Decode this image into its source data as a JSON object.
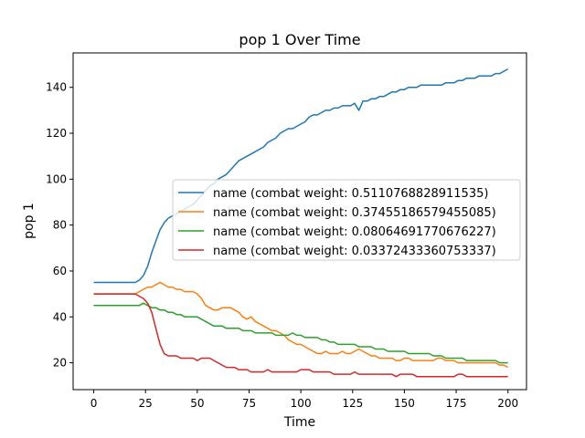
{
  "chart_data": {
    "type": "line",
    "title": "pop 1 Over Time",
    "xlabel": "Time",
    "ylabel": "pop 1",
    "xlim": [
      -9.95,
      208.95
    ],
    "ylim": [
      8.3,
      155.0
    ],
    "xticks": [
      0,
      25,
      50,
      75,
      100,
      125,
      150,
      175,
      200
    ],
    "xtick_labels": [
      "0",
      "25",
      "50",
      "75",
      "100",
      "125",
      "150",
      "175",
      "200"
    ],
    "yticks": [
      20,
      40,
      60,
      80,
      100,
      120,
      140
    ],
    "ytick_labels": [
      "20",
      "40",
      "60",
      "80",
      "100",
      "120",
      "140"
    ],
    "grid": false,
    "legend_position": "center-right",
    "series": [
      {
        "name": "name (combat weight: 0.5110768828911535)",
        "color": "#1f77b4",
        "x": [
          0,
          5,
          10,
          15,
          20,
          22,
          24,
          26,
          28,
          30,
          32,
          34,
          36,
          38,
          40,
          42,
          44,
          46,
          48,
          50,
          52,
          54,
          56,
          58,
          60,
          62,
          64,
          66,
          68,
          70,
          72,
          74,
          76,
          78,
          80,
          82,
          84,
          86,
          88,
          90,
          92,
          94,
          96,
          98,
          100,
          102,
          104,
          106,
          108,
          110,
          112,
          114,
          116,
          118,
          120,
          122,
          124,
          126,
          128,
          130,
          132,
          134,
          136,
          138,
          140,
          142,
          144,
          146,
          148,
          150,
          152,
          154,
          156,
          158,
          160,
          162,
          164,
          166,
          168,
          170,
          172,
          174,
          176,
          178,
          180,
          182,
          184,
          186,
          188,
          190,
          192,
          194,
          196,
          198,
          200
        ],
        "y": [
          55,
          55,
          55,
          55,
          55,
          56,
          58,
          62,
          68,
          73,
          78,
          81,
          83,
          84,
          85,
          86,
          87,
          88,
          89,
          91,
          93,
          95,
          97,
          98,
          100,
          101,
          102,
          104,
          106,
          108,
          109,
          110,
          111,
          112,
          113,
          114,
          116,
          117,
          118,
          120,
          121,
          122,
          122,
          123,
          124,
          125,
          127,
          128,
          128,
          129,
          130,
          130,
          131,
          131,
          132,
          132,
          132,
          133,
          130,
          134,
          134,
          135,
          135,
          136,
          136,
          137,
          138,
          138,
          139,
          139,
          140,
          140,
          140,
          141,
          141,
          141,
          141,
          141,
          141,
          142,
          142,
          142,
          143,
          143,
          144,
          144,
          144,
          145,
          145,
          145,
          145,
          146,
          146,
          147,
          148
        ]
      },
      {
        "name": "name (combat weight: 0.37455186579455085)",
        "color": "#ff7f0e",
        "x": [
          0,
          5,
          10,
          15,
          20,
          22,
          24,
          26,
          28,
          30,
          32,
          34,
          36,
          38,
          40,
          42,
          44,
          46,
          48,
          50,
          52,
          54,
          56,
          58,
          60,
          62,
          64,
          66,
          68,
          70,
          72,
          74,
          76,
          78,
          80,
          82,
          84,
          86,
          88,
          90,
          92,
          94,
          96,
          98,
          100,
          102,
          104,
          106,
          108,
          110,
          112,
          114,
          116,
          118,
          120,
          122,
          124,
          126,
          128,
          130,
          132,
          134,
          136,
          138,
          140,
          142,
          144,
          146,
          148,
          150,
          152,
          154,
          156,
          158,
          160,
          162,
          164,
          166,
          168,
          170,
          172,
          174,
          176,
          178,
          180,
          182,
          184,
          186,
          188,
          190,
          192,
          194,
          196,
          198,
          200
        ],
        "y": [
          50,
          50,
          50,
          50,
          50,
          51,
          52,
          53,
          53,
          54,
          55,
          54,
          53,
          53,
          52,
          52,
          51,
          51,
          51,
          50,
          48,
          45,
          44,
          43,
          43,
          44,
          44,
          44,
          43,
          42,
          40,
          39,
          40,
          38,
          37,
          36,
          35,
          34,
          34,
          33,
          32,
          30,
          29,
          28,
          28,
          27,
          26,
          25,
          24,
          24,
          25,
          24,
          24,
          24,
          25,
          24,
          24,
          25,
          26,
          25,
          24,
          23,
          23,
          22,
          22,
          22,
          22,
          21,
          21,
          22,
          22,
          21,
          21,
          21,
          21,
          21,
          21,
          22,
          22,
          21,
          21,
          21,
          20,
          20,
          20,
          20,
          20,
          20,
          20,
          20,
          20,
          20,
          19,
          19,
          18
        ]
      },
      {
        "name": "name (combat weight: 0.08064691770676227)",
        "color": "#2ca02c",
        "x": [
          0,
          5,
          10,
          15,
          20,
          22,
          24,
          26,
          28,
          30,
          32,
          34,
          36,
          38,
          40,
          42,
          44,
          46,
          48,
          50,
          52,
          54,
          56,
          58,
          60,
          62,
          64,
          66,
          68,
          70,
          72,
          74,
          76,
          78,
          80,
          82,
          84,
          86,
          88,
          90,
          92,
          94,
          96,
          98,
          100,
          102,
          104,
          106,
          108,
          110,
          112,
          114,
          116,
          118,
          120,
          122,
          124,
          126,
          128,
          130,
          132,
          134,
          136,
          138,
          140,
          142,
          144,
          146,
          148,
          150,
          152,
          154,
          156,
          158,
          160,
          162,
          164,
          166,
          168,
          170,
          172,
          174,
          176,
          178,
          180,
          182,
          184,
          186,
          188,
          190,
          192,
          194,
          196,
          198,
          200
        ],
        "y": [
          45,
          45,
          45,
          45,
          45,
          45,
          46,
          45,
          44,
          44,
          43,
          43,
          42,
          42,
          41,
          41,
          40,
          40,
          40,
          40,
          39,
          38,
          37,
          36,
          36,
          36,
          35,
          35,
          35,
          35,
          34,
          34,
          34,
          33,
          33,
          33,
          33,
          33,
          32,
          32,
          32,
          32,
          33,
          32,
          32,
          31,
          31,
          31,
          31,
          30,
          30,
          29,
          29,
          28,
          28,
          28,
          28,
          28,
          27,
          27,
          27,
          27,
          26,
          26,
          26,
          25,
          25,
          25,
          25,
          25,
          24,
          24,
          24,
          24,
          24,
          24,
          23,
          23,
          23,
          22,
          22,
          22,
          22,
          22,
          21,
          21,
          21,
          21,
          21,
          21,
          21,
          21,
          20,
          20,
          20
        ]
      },
      {
        "name": "name (combat weight: 0.03372433360753337)",
        "color": "#d62728",
        "x": [
          0,
          5,
          10,
          15,
          20,
          22,
          24,
          26,
          28,
          30,
          32,
          34,
          36,
          38,
          40,
          42,
          44,
          46,
          48,
          50,
          52,
          54,
          56,
          58,
          60,
          62,
          64,
          66,
          68,
          70,
          72,
          74,
          76,
          78,
          80,
          82,
          84,
          86,
          88,
          90,
          92,
          94,
          96,
          98,
          100,
          102,
          104,
          106,
          108,
          110,
          112,
          114,
          116,
          118,
          120,
          122,
          124,
          126,
          128,
          130,
          132,
          134,
          136,
          138,
          140,
          142,
          144,
          146,
          148,
          150,
          152,
          154,
          156,
          158,
          160,
          162,
          164,
          166,
          168,
          170,
          172,
          174,
          176,
          178,
          180,
          182,
          184,
          186,
          188,
          190,
          192,
          194,
          196,
          198,
          200
        ],
        "y": [
          50,
          50,
          50,
          50,
          50,
          49,
          48,
          46,
          42,
          35,
          28,
          24,
          23,
          23,
          23,
          22,
          22,
          22,
          22,
          21,
          22,
          22,
          22,
          21,
          20,
          19,
          18,
          18,
          18,
          17,
          17,
          17,
          16,
          16,
          16,
          16,
          17,
          16,
          16,
          16,
          16,
          16,
          16,
          16,
          17,
          17,
          17,
          16,
          16,
          16,
          16,
          16,
          15,
          15,
          15,
          15,
          15,
          16,
          15,
          15,
          15,
          15,
          15,
          15,
          15,
          15,
          15,
          14,
          15,
          15,
          15,
          15,
          14,
          14,
          14,
          14,
          14,
          14,
          14,
          14,
          14,
          14,
          15,
          15,
          14,
          14,
          14,
          14,
          14,
          14,
          14,
          14,
          14,
          14,
          14
        ]
      }
    ]
  }
}
